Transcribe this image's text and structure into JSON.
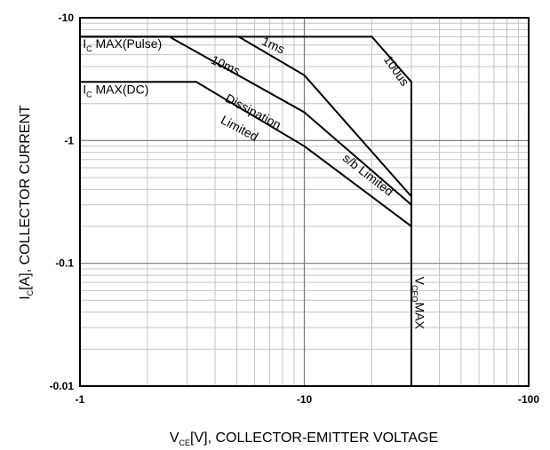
{
  "chart_data": {
    "type": "line",
    "title": "",
    "xscale": "log",
    "yscale": "log",
    "xlim": [
      1,
      100
    ],
    "ylim": [
      0.01,
      10
    ],
    "grid": true,
    "x_ticks": [
      {
        "value": 1,
        "label": "-1"
      },
      {
        "value": 10,
        "label": "-10"
      },
      {
        "value": 100,
        "label": "-100"
      }
    ],
    "y_ticks": [
      {
        "value": 10,
        "label": "-10"
      },
      {
        "value": 1,
        "label": "-1"
      },
      {
        "value": 0.1,
        "label": "-0.1"
      },
      {
        "value": 0.01,
        "label": "-0.01"
      }
    ],
    "xlabel": {
      "pre": "V",
      "sub": "CE",
      "post": "[V], COLLECTOR-EMITTER VOLTAGE"
    },
    "ylabel": {
      "pre": "I",
      "sub": "C",
      "post": "[A], COLLECTOR CURRENT"
    },
    "series": [
      {
        "key": "dc",
        "points": [
          [
            1,
            3.0
          ],
          [
            3.3,
            3.0
          ],
          [
            10,
            0.9
          ],
          [
            30,
            0.2
          ],
          [
            30,
            0.01
          ]
        ]
      },
      {
        "key": "10ms",
        "points": [
          [
            1,
            7.0
          ],
          [
            2.5,
            7.0
          ],
          [
            10,
            1.7
          ],
          [
            30,
            0.3
          ]
        ]
      },
      {
        "key": "1ms",
        "points": [
          [
            1,
            7.0
          ],
          [
            5.1,
            7.0
          ],
          [
            10,
            3.4
          ],
          [
            30,
            0.35
          ]
        ]
      },
      {
        "key": "100us",
        "points": [
          [
            1,
            7.0
          ],
          [
            20,
            7.0
          ],
          [
            30,
            3.0
          ],
          [
            30,
            0.2
          ]
        ]
      }
    ],
    "annotations": [
      {
        "key": "ic_pulse",
        "pre": "I",
        "sub": "C",
        "post": " MAX(Pulse)",
        "x": 1.03,
        "y": 5.7,
        "rotate": 0
      },
      {
        "key": "ic_dc",
        "pre": "I",
        "sub": "C",
        "post": " MAX(DC)",
        "x": 1.03,
        "y": 2.4,
        "rotate": 0
      },
      {
        "key": "lbl_1ms",
        "text": "1ms",
        "x": 6.4,
        "y": 6.1,
        "rotate": 25
      },
      {
        "key": "lbl_10ms",
        "text": "10ms",
        "x": 3.8,
        "y": 4.3,
        "rotate": 25
      },
      {
        "key": "lbl_100us",
        "text": "100us",
        "x": 22.5,
        "y": 4.6,
        "rotate": 55
      },
      {
        "key": "lbl_diss1",
        "text": "Dissipation",
        "x": 4.4,
        "y": 2.1,
        "rotate": 28
      },
      {
        "key": "lbl_diss2",
        "text": "Limited",
        "x": 4.2,
        "y": 1.4,
        "rotate": 28
      },
      {
        "key": "lbl_sb",
        "text": "s/b Limited",
        "x": 14.7,
        "y": 0.7,
        "rotate": 38
      },
      {
        "key": "vceo",
        "pre": "V",
        "sub": "CEO",
        "post": "MAX",
        "x": 31.3,
        "y": 0.078,
        "rotate": 90
      }
    ]
  }
}
